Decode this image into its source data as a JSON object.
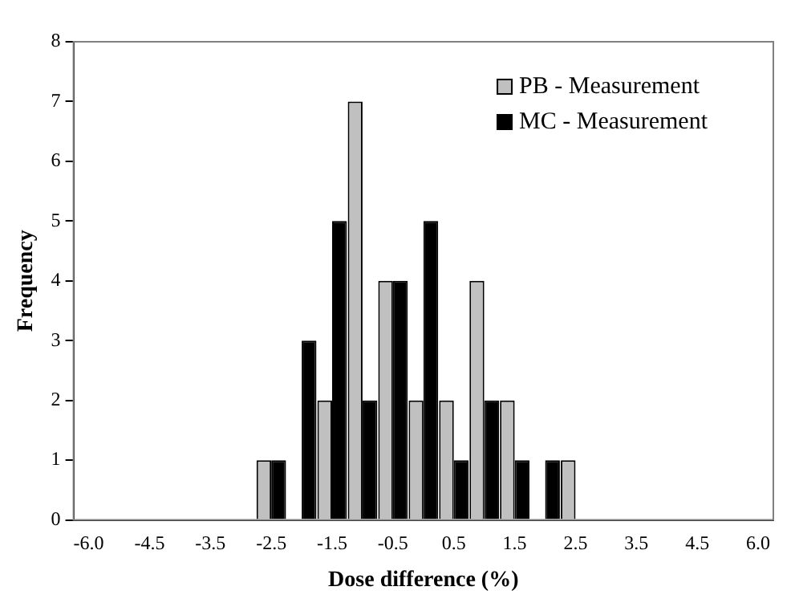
{
  "chart_data": {
    "type": "bar",
    "xlabel": "Dose difference (%)",
    "ylabel": "Frequency",
    "categories": [
      "-6.0",
      null,
      "-4.5",
      null,
      "-3.5",
      null,
      "-2.5",
      null,
      "-1.5",
      null,
      "-0.5",
      null,
      "0.5",
      null,
      "1.5",
      null,
      "2.5",
      null,
      "3.5",
      null,
      "4.5",
      null,
      "6.0"
    ],
    "series": [
      {
        "name": "PB - Measurement",
        "color": "#c0c0c0",
        "values": [
          0,
          0,
          0,
          0,
          0,
          0,
          1,
          0,
          2,
          7,
          4,
          2,
          2,
          4,
          2,
          0,
          1,
          0,
          0,
          0,
          0,
          0,
          0
        ]
      },
      {
        "name": "MC - Measurement",
        "color": "#000000",
        "values": [
          0,
          0,
          0,
          0,
          0,
          0,
          1,
          3,
          5,
          2,
          4,
          5,
          1,
          2,
          1,
          1,
          0,
          0,
          0,
          0,
          0,
          0,
          0
        ]
      }
    ],
    "ylim": [
      0,
      8
    ],
    "yticks": [
      0,
      1,
      2,
      3,
      4,
      5,
      6,
      7,
      8
    ],
    "grid": false,
    "legend": "top right"
  }
}
